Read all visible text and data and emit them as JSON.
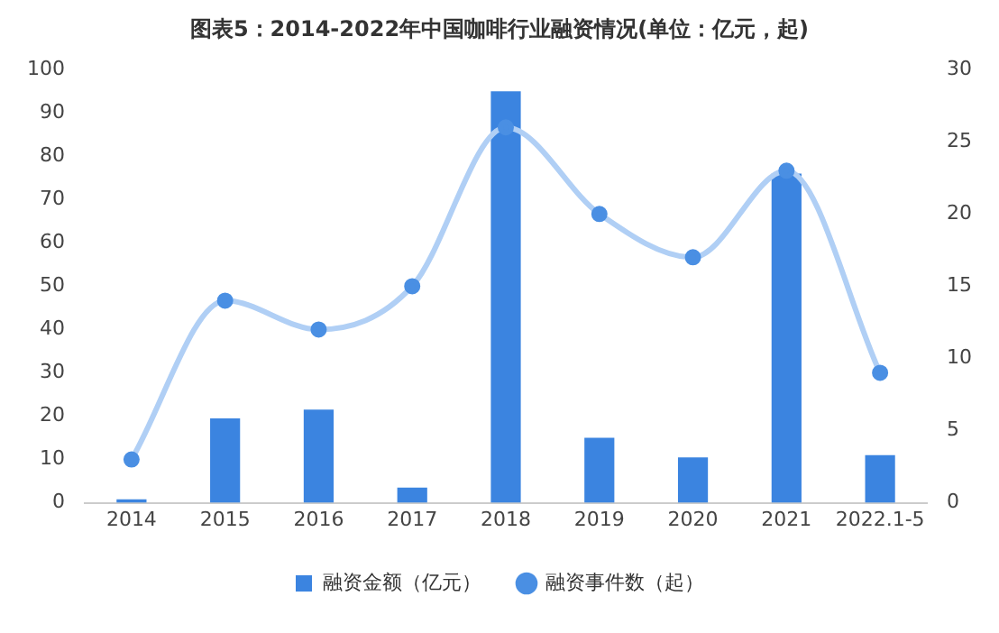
{
  "chart_data": {
    "type": "bar",
    "title": "图表5：2014-2022年中国咖啡行业融资情况(单位：亿元，起)",
    "categories": [
      "2014",
      "2015",
      "2016",
      "2017",
      "2018",
      "2019",
      "2020",
      "2021",
      "2022.1-5"
    ],
    "series": [
      {
        "name": "融资金额（亿元）",
        "color": "#3b84e0",
        "values": [
          0.8,
          19.5,
          21.5,
          3.5,
          95,
          15,
          10.5,
          76,
          11
        ]
      },
      {
        "name": "融资事件数（起）",
        "type": "line",
        "axis": "y2",
        "color": "#b0cff5",
        "values": [
          3,
          14,
          12,
          15,
          26,
          20,
          17,
          23,
          9
        ]
      }
    ],
    "ylim": [
      0,
      100
    ],
    "yticks": [
      0,
      10,
      20,
      30,
      40,
      50,
      60,
      70,
      80,
      90,
      100
    ],
    "y2lim": [
      0,
      30
    ],
    "y2ticks": [
      0,
      5,
      10,
      15,
      20,
      25,
      30
    ],
    "marker": "circle",
    "legend": "bottom",
    "grid": false
  }
}
